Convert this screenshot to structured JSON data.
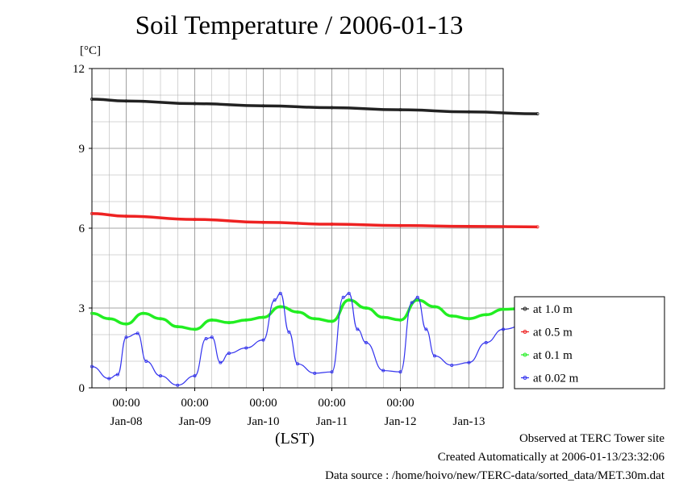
{
  "title": "Soil Temperature / 2006-01-13",
  "footer": {
    "observed": "Observed at TERC Tower site",
    "created": "Created Automatically at 2006-01-13/23:32:06",
    "source": "Data source : /home/hoivo/new/TERC-data/sorted_data/MET.30m.dat"
  },
  "chart_data": {
    "type": "line",
    "title": "Soil Temperature / 2006-01-13",
    "ylabel": "[°C]",
    "xlabel": "(LST)",
    "ylim": [
      0,
      12
    ],
    "xlim_days": [
      0,
      6
    ],
    "y_ticks": [
      "0",
      "3",
      "6",
      "9",
      "12"
    ],
    "x_tick_labels": [
      "00:00",
      "00:00",
      "00:00",
      "00:00",
      "00:00"
    ],
    "x_date_labels": [
      "Jan-08",
      "Jan-09",
      "Jan-10",
      "Jan-11",
      "Jan-12",
      "Jan-13"
    ],
    "grid": true,
    "legend_position": "right",
    "series": [
      {
        "name": "at 1.0 m",
        "color": "#222222",
        "x": [
          "Jan-07 12:00",
          "Jan-08 00:00",
          "Jan-09 00:00",
          "Jan-10 00:00",
          "Jan-11 00:00",
          "Jan-12 00:00",
          "Jan-13 00:00",
          "Jan-13 24:00"
        ],
        "values": [
          10.85,
          10.78,
          10.68,
          10.6,
          10.53,
          10.45,
          10.37,
          10.3
        ]
      },
      {
        "name": "at 0.5 m",
        "color": "#ee2222",
        "x": [
          "Jan-07 12:00",
          "Jan-08 00:00",
          "Jan-09 00:00",
          "Jan-10 00:00",
          "Jan-11 00:00",
          "Jan-12 00:00",
          "Jan-13 00:00",
          "Jan-13 24:00"
        ],
        "values": [
          6.55,
          6.45,
          6.33,
          6.22,
          6.15,
          6.1,
          6.07,
          6.05
        ]
      },
      {
        "name": "at 0.1 m",
        "color": "#22ee22",
        "x": [
          "Jan-07 12:00",
          "Jan-07 18:00",
          "Jan-08 00:00",
          "Jan-08 06:00",
          "Jan-08 12:00",
          "Jan-08 18:00",
          "Jan-09 00:00",
          "Jan-09 06:00",
          "Jan-09 12:00",
          "Jan-09 18:00",
          "Jan-10 00:00",
          "Jan-10 06:00",
          "Jan-10 12:00",
          "Jan-10 18:00",
          "Jan-11 00:00",
          "Jan-11 06:00",
          "Jan-11 12:00",
          "Jan-11 18:00",
          "Jan-12 00:00",
          "Jan-12 06:00",
          "Jan-12 12:00",
          "Jan-12 18:00",
          "Jan-13 00:00",
          "Jan-13 06:00",
          "Jan-13 12:00",
          "Jan-13 24:00"
        ],
        "values": [
          2.8,
          2.6,
          2.4,
          2.8,
          2.6,
          2.3,
          2.2,
          2.55,
          2.45,
          2.55,
          2.65,
          3.05,
          2.85,
          2.6,
          2.5,
          3.3,
          3.0,
          2.65,
          2.55,
          3.3,
          3.05,
          2.7,
          2.6,
          2.75,
          2.95,
          3.05
        ]
      },
      {
        "name": "at 0.02 m",
        "color": "#3333ee",
        "x": [
          "Jan-07 12:00",
          "Jan-07 18:00",
          "Jan-07 21:00",
          "Jan-08 00:00",
          "Jan-08 04:00",
          "Jan-08 07:00",
          "Jan-08 12:00",
          "Jan-08 18:00",
          "Jan-09 00:00",
          "Jan-09 04:00",
          "Jan-09 06:00",
          "Jan-09 09:00",
          "Jan-09 12:00",
          "Jan-09 18:00",
          "Jan-10 00:00",
          "Jan-10 04:00",
          "Jan-10 06:00",
          "Jan-10 09:00",
          "Jan-10 12:00",
          "Jan-10 18:00",
          "Jan-11 00:00",
          "Jan-11 04:00",
          "Jan-11 06:00",
          "Jan-11 09:00",
          "Jan-11 12:00",
          "Jan-11 18:00",
          "Jan-12 00:00",
          "Jan-12 04:00",
          "Jan-12 06:00",
          "Jan-12 09:00",
          "Jan-12 12:00",
          "Jan-12 18:00",
          "Jan-13 00:00",
          "Jan-13 06:00",
          "Jan-13 12:00",
          "Jan-13 24:00"
        ],
        "values": [
          0.8,
          0.35,
          0.5,
          1.9,
          2.05,
          1.0,
          0.45,
          0.1,
          0.45,
          1.85,
          1.9,
          0.95,
          1.3,
          1.5,
          1.8,
          3.3,
          3.55,
          2.1,
          0.9,
          0.55,
          0.6,
          3.4,
          3.55,
          2.2,
          1.7,
          0.65,
          0.6,
          3.2,
          3.4,
          2.2,
          1.2,
          0.85,
          0.95,
          1.7,
          2.2,
          2.65
        ]
      }
    ]
  }
}
